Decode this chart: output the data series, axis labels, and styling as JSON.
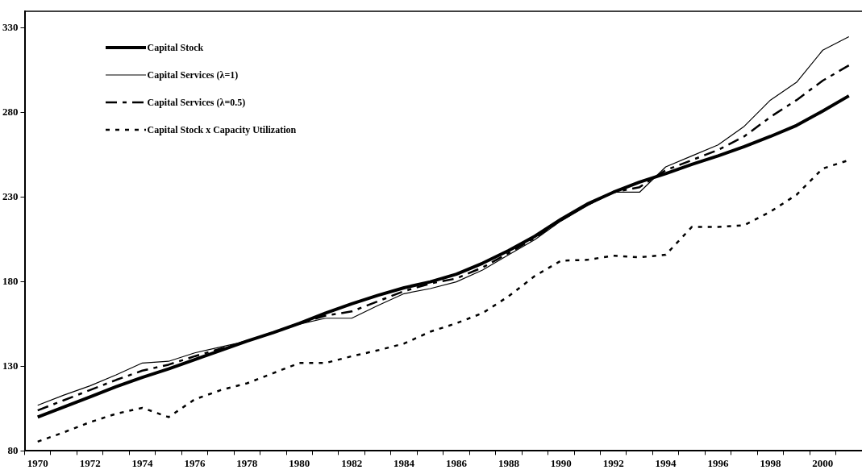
{
  "chart_data": {
    "type": "line",
    "categories": [
      "1970",
      null,
      "1972",
      null,
      "1974",
      null,
      "1976",
      null,
      "1978",
      null,
      "1980",
      null,
      "1982",
      null,
      "1984",
      null,
      "1986",
      null,
      "1988",
      null,
      "1990",
      null,
      "1992",
      null,
      "1994",
      null,
      "1996",
      null,
      "1998",
      null,
      "2000",
      null
    ],
    "series": [
      {
        "name": "Capital Stock",
        "color": "#000000",
        "line_style": "solid",
        "values": [
          100,
          106,
          112,
          118,
          123.5,
          128.5,
          134,
          139.5,
          145,
          150,
          155.5,
          161.5,
          167,
          172,
          176.5,
          180,
          184.5,
          191,
          198.5,
          207,
          217,
          226,
          233,
          239,
          244,
          249.5,
          254.5,
          260,
          266,
          272.5,
          281,
          290
        ]
      },
      {
        "name": "Capital Services (λ=1)",
        "color": "#000000",
        "line_style": "solid",
        "values": [
          107,
          113,
          118.5,
          125,
          132,
          133,
          138,
          141.5,
          145,
          150,
          155,
          158.5,
          158.5,
          166,
          173,
          176,
          180,
          187,
          196,
          205,
          216,
          225,
          233,
          233,
          248,
          254.5,
          261,
          272,
          287.5,
          298,
          317,
          325
        ]
      },
      {
        "name": "Capital Services (λ=0.5)",
        "color": "#000000",
        "line_style": "dashed",
        "values": [
          104,
          110,
          116,
          122,
          127.5,
          131,
          136,
          140.5,
          145,
          150,
          155.5,
          160,
          162.5,
          168.5,
          174.5,
          179,
          182,
          188.5,
          197,
          206,
          216.5,
          225.5,
          233,
          236,
          246,
          252,
          258,
          266,
          277.5,
          287.5,
          299,
          308
        ]
      },
      {
        "name": "Capital Stock x Capacity Utilization",
        "color": "#000000",
        "line_style": "dotted",
        "values": [
          85.5,
          91,
          97,
          102,
          105.5,
          100,
          110.5,
          116,
          120,
          126,
          132,
          132,
          136,
          139.5,
          143.5,
          150.5,
          155.5,
          161.5,
          171.5,
          183.5,
          192.5,
          193,
          195.5,
          194.5,
          196,
          212.5,
          212.5,
          213.5,
          221.5,
          231.5,
          247,
          252
        ]
      }
    ],
    "ylim": [
      80,
      340
    ],
    "yticks": [
      80,
      130,
      180,
      230,
      280,
      330
    ],
    "grid": false,
    "legend": "top left",
    "marker": "none"
  }
}
